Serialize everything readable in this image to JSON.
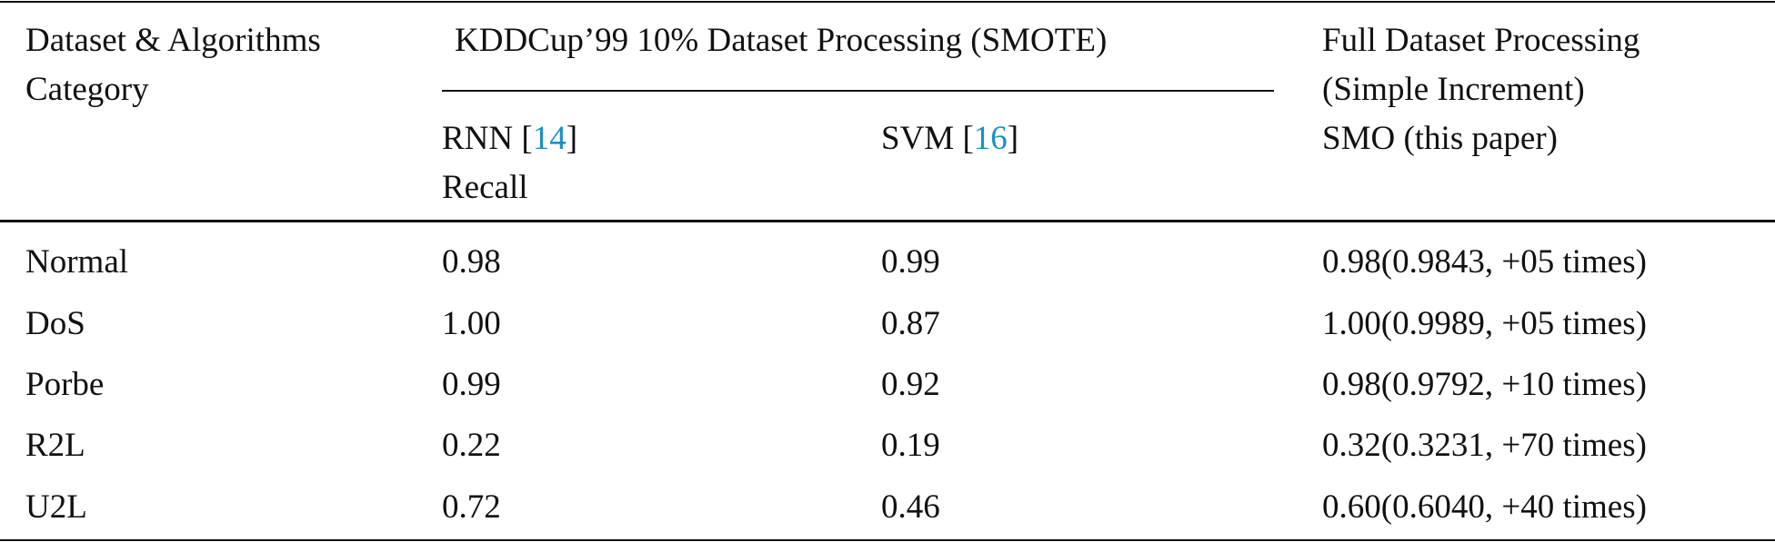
{
  "header": {
    "col0": [
      "Dataset & Algorithms",
      "Category"
    ],
    "group1": "KDDCup’99 10% Dataset Processing (SMOTE)",
    "col1": {
      "text": "RNN [",
      "ref": "14",
      "close": "]",
      "metric": "Recall"
    },
    "col2": {
      "text": "SVM [",
      "ref": "16",
      "close": "]"
    },
    "col3": [
      "Full Dataset Processing",
      "(Simple Increment)",
      "SMO (this paper)"
    ]
  },
  "table": {
    "rows": [
      [
        "Normal",
        "0.98",
        "0.99",
        "0.98(0.9843, +05 times)"
      ],
      [
        "DoS",
        "1.00",
        "0.87",
        "1.00(0.9989, +05 times)"
      ],
      [
        "Porbe",
        "0.99",
        "0.92",
        "0.98(0.9792, +10 times)"
      ],
      [
        "R2L",
        "0.22",
        "0.19",
        "0.32(0.3231, +70 times)"
      ],
      [
        "U2L",
        "0.72",
        "0.46",
        "0.60(0.6040, +40 times)"
      ]
    ]
  }
}
